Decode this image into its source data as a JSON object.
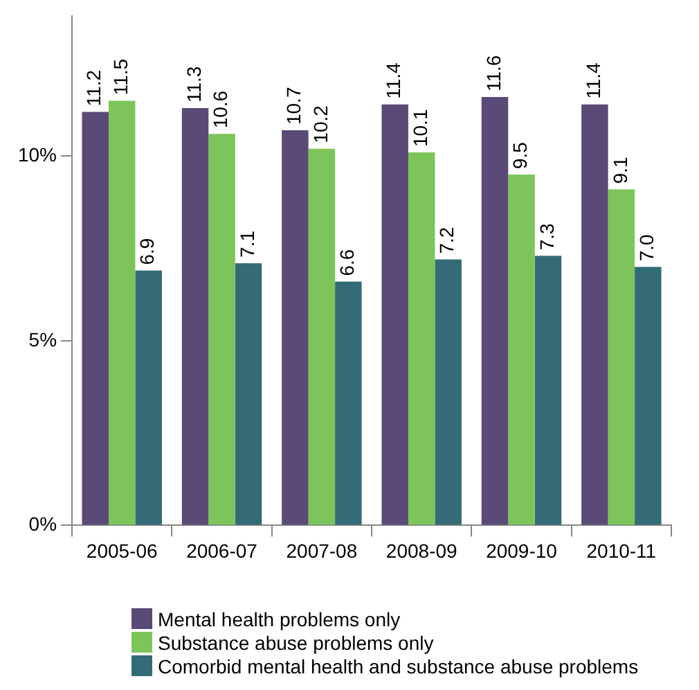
{
  "chart_data": {
    "type": "bar",
    "categories": [
      "2005-06",
      "2006-07",
      "2007-08",
      "2008-09",
      "2009-10",
      "2010-11"
    ],
    "series": [
      {
        "name": "Mental health problems only",
        "color": "#5a4a78",
        "values": [
          11.2,
          11.3,
          10.7,
          11.4,
          11.6,
          11.4
        ],
        "value_labels": [
          "11.2",
          "11.3",
          "10.7",
          "11.4",
          "11.6",
          "11.4"
        ]
      },
      {
        "name": "Substance abuse problems only",
        "color": "#7dc45a",
        "values": [
          11.5,
          10.6,
          10.2,
          10.1,
          9.5,
          9.1
        ],
        "value_labels": [
          "11.5",
          "10.6",
          "10.2",
          "10.1",
          "9.5",
          "9.1"
        ]
      },
      {
        "name": "Comorbid mental health and substance abuse problems",
        "color": "#336b77",
        "values": [
          6.9,
          7.1,
          6.6,
          7.2,
          7.3,
          7.0
        ],
        "value_labels": [
          "6.9",
          "7.1",
          "6.6",
          "7.2",
          "7.3",
          "7.0"
        ]
      }
    ],
    "ylim": [
      0,
      13.8
    ],
    "yticks": [
      {
        "value": 0,
        "label": "0%"
      },
      {
        "value": 5,
        "label": "5%"
      },
      {
        "value": 10,
        "label": "10%"
      }
    ],
    "grid": false,
    "legend": "bottom"
  }
}
